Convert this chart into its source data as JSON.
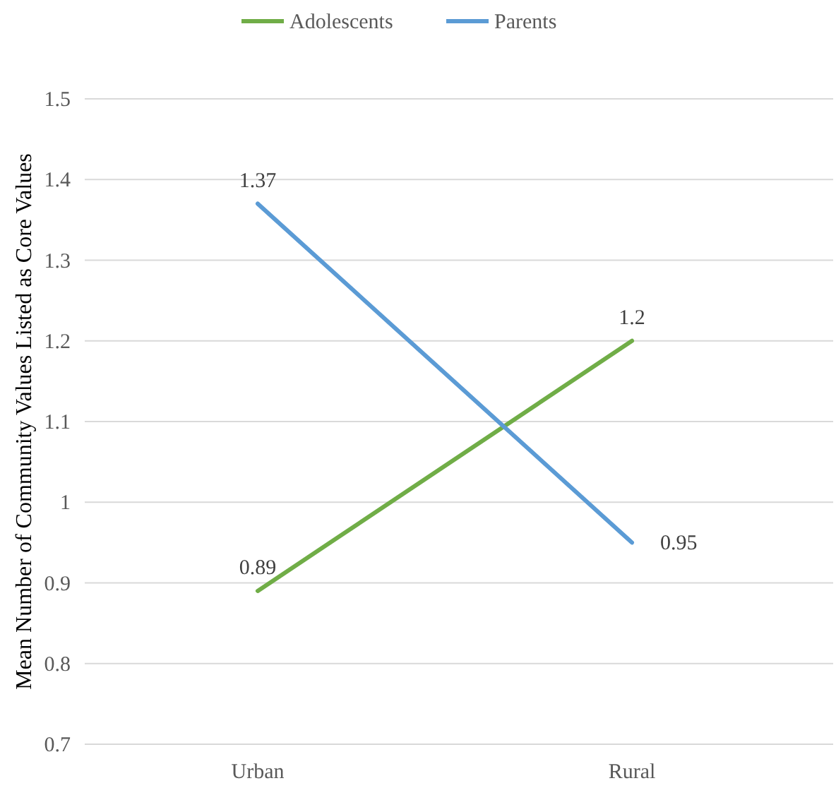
{
  "chart_data": {
    "type": "line",
    "ylabel": "Mean Number of Community Values Listed as Core Values",
    "categories": [
      "Urban",
      "Rural"
    ],
    "series": [
      {
        "name": "Adolescents",
        "color": "#70ad47",
        "values": [
          0.89,
          1.2
        ]
      },
      {
        "name": "Parents",
        "color": "#5b9bd5",
        "values": [
          1.37,
          0.95
        ]
      }
    ],
    "ylim": [
      0.7,
      1.5
    ],
    "yticks": [
      0.7,
      0.8,
      0.9,
      1,
      1.1,
      1.2,
      1.3,
      1.4,
      1.5
    ],
    "grid": "y",
    "legend": "top",
    "data_labels": true,
    "marker": "none",
    "line_style": "solid"
  }
}
